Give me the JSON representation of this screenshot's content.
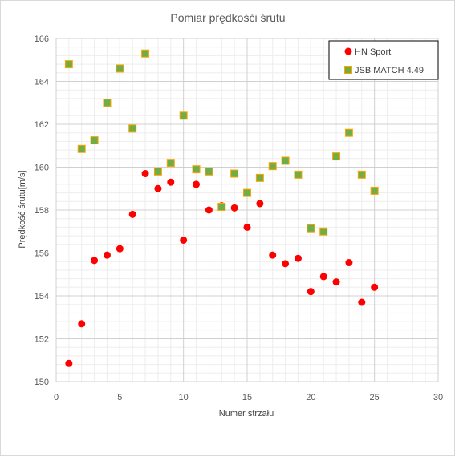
{
  "chart_data": {
    "type": "scatter",
    "title": "Pomiar prędkośći śrutu",
    "xlabel": "Numer strzału",
    "ylabel": "Prędkość śrutu[m/s]",
    "xlim": [
      0,
      30
    ],
    "ylim": [
      150,
      166
    ],
    "x_ticks": [
      0,
      5,
      10,
      15,
      20,
      25,
      30
    ],
    "y_ticks": [
      150,
      152,
      154,
      156,
      158,
      160,
      162,
      164,
      166
    ],
    "grid": true,
    "minor_grid": true,
    "legend_position": "top-right",
    "series": [
      {
        "name": "HN Sport",
        "marker": "circle",
        "color": "#ff0000",
        "x": [
          1,
          2,
          3,
          4,
          5,
          6,
          7,
          8,
          9,
          10,
          11,
          12,
          13,
          14,
          15,
          16,
          17,
          18,
          19,
          20,
          21,
          22,
          23,
          24,
          25
        ],
        "y": [
          150.85,
          152.7,
          155.65,
          155.9,
          156.2,
          157.8,
          159.7,
          159.0,
          159.3,
          156.6,
          159.2,
          158.0,
          158.2,
          158.1,
          157.2,
          158.3,
          155.9,
          155.5,
          155.75,
          154.2,
          154.9,
          154.65,
          155.55,
          153.7,
          154.4
        ]
      },
      {
        "name": "JSB MATCH 4.49",
        "marker": "square",
        "color": "#70ad47",
        "edge_color": "#ffa500",
        "x": [
          1,
          2,
          3,
          4,
          5,
          6,
          7,
          8,
          9,
          10,
          11,
          12,
          13,
          14,
          15,
          16,
          17,
          18,
          19,
          20,
          21,
          22,
          23,
          24,
          25
        ],
        "y": [
          164.8,
          160.85,
          161.25,
          163.0,
          164.6,
          161.8,
          165.3,
          159.8,
          160.2,
          162.4,
          159.9,
          159.8,
          158.15,
          159.7,
          158.8,
          159.5,
          160.05,
          160.3,
          159.65,
          157.15,
          157.0,
          160.5,
          161.6,
          159.65,
          158.9
        ]
      }
    ]
  }
}
